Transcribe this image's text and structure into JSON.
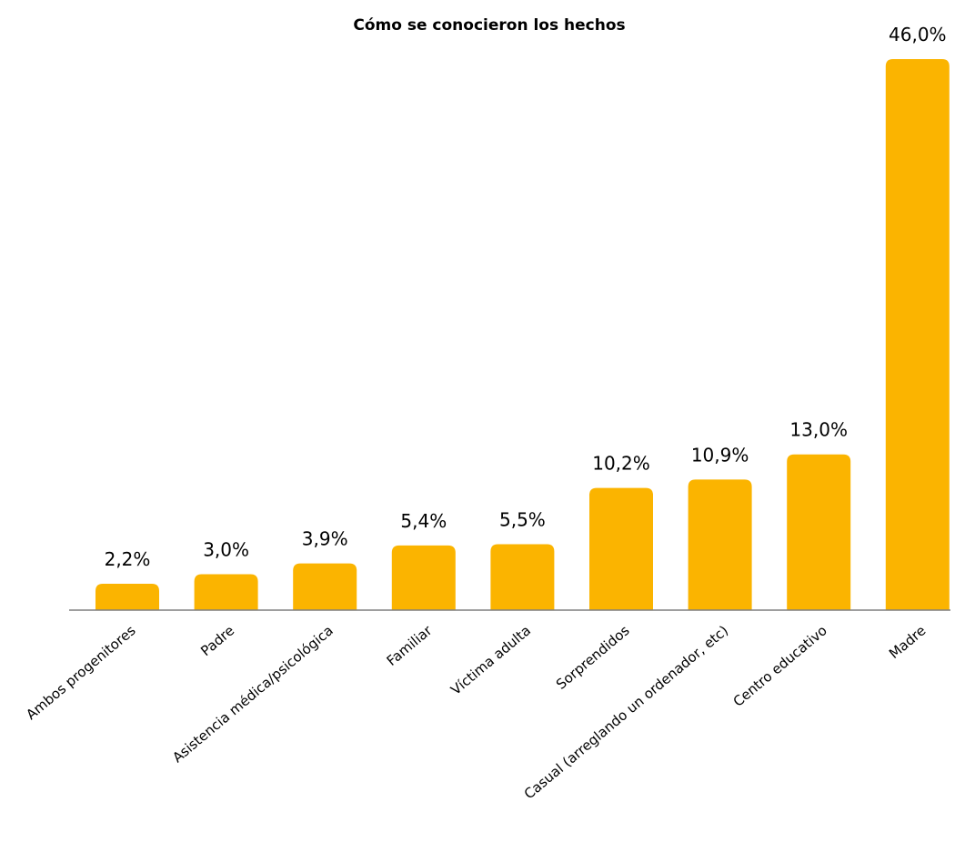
{
  "chart_data": {
    "type": "bar",
    "title": "Cómo se conocieron los hechos",
    "xlabel": "",
    "ylabel": "",
    "categories": [
      "Ambos progenitores",
      "Padre",
      "Asistencia médica/psicológica",
      "Familiar",
      "Víctima adulta",
      "Sorprendidos",
      "Casual (arreglando un ordenador, etc)",
      "Centro educativo",
      "Madre"
    ],
    "values": [
      2.2,
      3.0,
      3.9,
      5.4,
      5.5,
      10.2,
      10.9,
      13.0,
      46.0
    ],
    "value_labels": [
      "2,2%",
      "3,0%",
      "3,9%",
      "5,4%",
      "5,5%",
      "10,2%",
      "10,9%",
      "13,0%",
      "46,0%"
    ],
    "ylim": [
      0,
      46
    ],
    "grid": false,
    "legend": "none",
    "bar_color": "#FBB400",
    "axis_color": "#7F7F7F"
  }
}
